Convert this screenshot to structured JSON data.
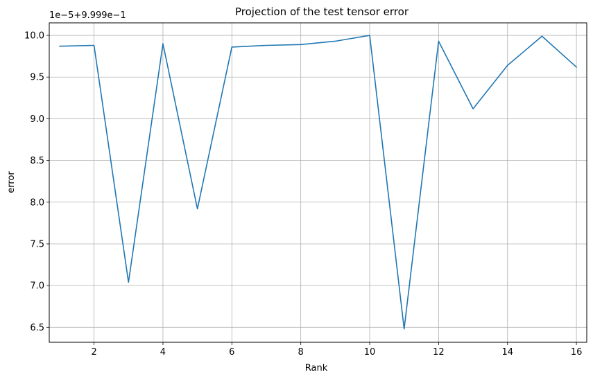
{
  "chart_data": {
    "type": "line",
    "title": "Projection of the test tensor error",
    "xlabel": "Rank",
    "ylabel": "error",
    "offset_text": "1e−5+9.999e−1",
    "xlim": [
      0.7,
      16.3
    ],
    "ylim": [
      6.32,
      10.15
    ],
    "grid": true,
    "xticks": [
      2,
      4,
      6,
      8,
      10,
      12,
      14,
      16
    ],
    "xtick_labels": [
      "2",
      "4",
      "6",
      "8",
      "10",
      "12",
      "14",
      "16"
    ],
    "yticks": [
      6.5,
      7.0,
      7.5,
      8.0,
      8.5,
      9.0,
      9.5,
      10.0
    ],
    "ytick_labels": [
      "6.5",
      "7.0",
      "7.5",
      "8.0",
      "8.5",
      "9.0",
      "9.5",
      "10.0"
    ],
    "series": [
      {
        "color": "#1f77b4",
        "x": [
          1,
          2,
          3,
          4,
          5,
          6,
          7,
          8,
          9,
          10,
          11,
          12,
          13,
          14,
          15,
          16
        ],
        "y": [
          9.87,
          9.88,
          7.04,
          9.9,
          7.92,
          9.86,
          9.88,
          9.89,
          9.93,
          10.0,
          6.48,
          9.93,
          9.12,
          9.64,
          9.99,
          9.62
        ]
      }
    ]
  }
}
